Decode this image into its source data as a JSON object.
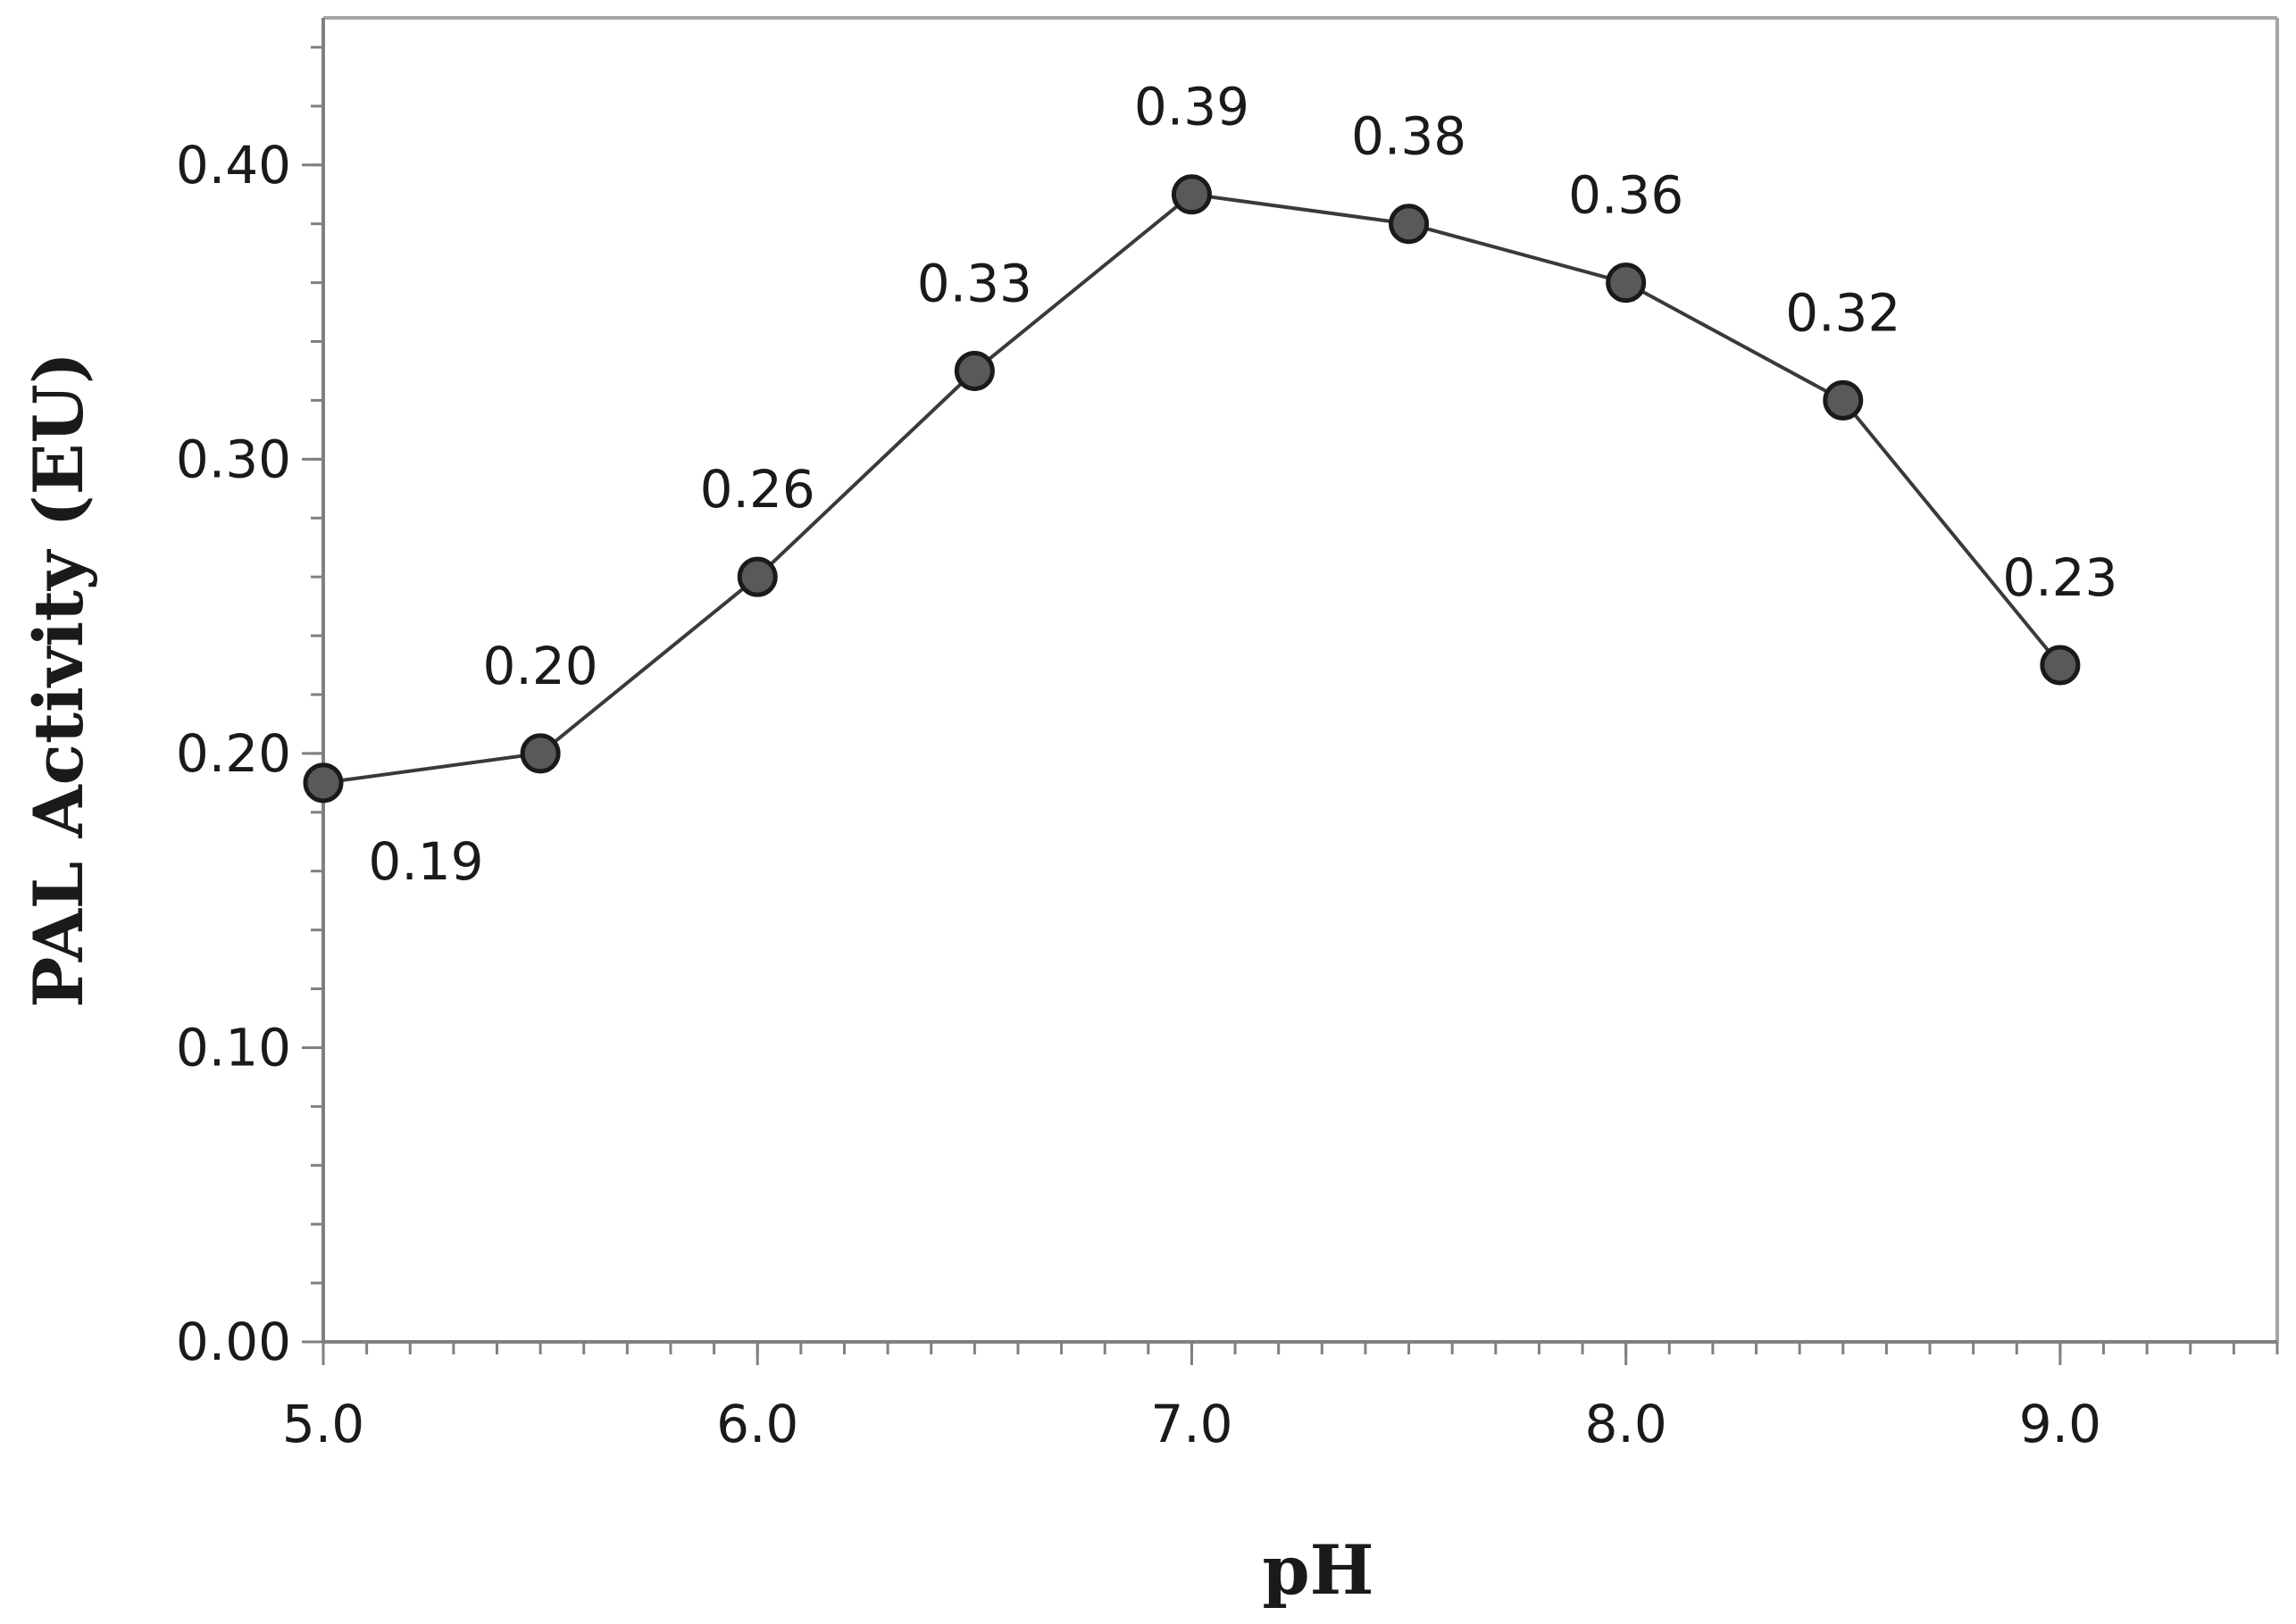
{
  "chart_data": {
    "type": "line",
    "title": "",
    "xlabel": "pH",
    "ylabel": "PAL Activity (EU)",
    "x": [
      5.0,
      5.5,
      6.0,
      6.5,
      7.0,
      7.5,
      8.0,
      8.5,
      9.0
    ],
    "series": [
      {
        "values": [
          0.19,
          0.2,
          0.26,
          0.33,
          0.39,
          0.38,
          0.36,
          0.32,
          0.23
        ]
      }
    ],
    "data_labels": [
      "0.19",
      "0.20",
      "0.26",
      "0.33",
      "0.39",
      "0.38",
      "0.36",
      "0.32",
      "0.23"
    ],
    "xlim": [
      5.0,
      9.5
    ],
    "ylim": [
      0.0,
      0.45
    ],
    "x_ticks": [
      5.0,
      6.0,
      7.0,
      8.0,
      9.0
    ],
    "x_tick_labels": [
      "5.0",
      "6.0",
      "7.0",
      "8.0",
      "9.0"
    ],
    "y_ticks": [
      0.0,
      0.1,
      0.2,
      0.3,
      0.4
    ],
    "y_tick_labels": [
      "0.00",
      "0.10",
      "0.20",
      "0.30",
      "0.40"
    ],
    "x_minor_step": 0.1,
    "y_minor_step": 0.02,
    "grid": false,
    "legend": "none",
    "colors": {
      "axis": "#808080",
      "frame": "#a6a6a6",
      "line": "#3a3a3a",
      "marker_fill": "#595959",
      "marker_stroke": "#1a1a1a"
    }
  }
}
